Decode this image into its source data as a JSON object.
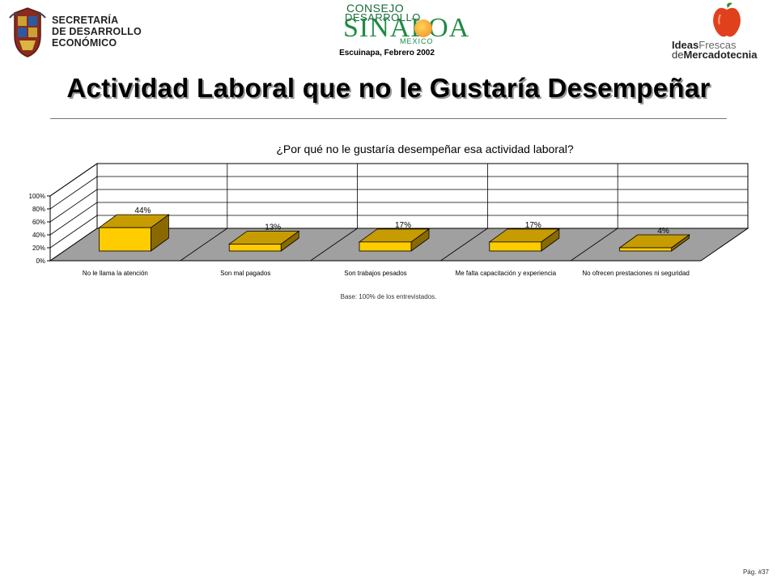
{
  "header": {
    "secretaria_lines": [
      "SECRETARÍA",
      "DE DESARROLLO",
      "ECONÓMICO"
    ],
    "consejo_logo": {
      "line1": "CONSEJO",
      "line2": "DESARROLLO",
      "line3": "SINALOA",
      "line4": "MEXICO"
    },
    "place_date": "Escuinapa, Febrero 2002",
    "ideas_logo": {
      "ideas": "Ideas",
      "frescas": "Frescas",
      "de": "de",
      "mercadotecnia": "Mercadotecnia"
    }
  },
  "page_title": "Actividad Laboral que no le Gustaría Desempeñar",
  "chart_data": {
    "type": "bar",
    "title": "¿Por qué no le gustaría desempeñar esa actividad laboral?",
    "categories": [
      "No le llama la atención",
      "Son mal pagados",
      "Son trabajos pesados",
      "Me falta capacitación y experiencia",
      "No ofrecen prestaciones ni seguridad"
    ],
    "values": [
      44,
      13,
      17,
      17,
      4
    ],
    "data_labels": [
      "44%",
      "13%",
      "17%",
      "17%",
      "4%"
    ],
    "y_ticks": [
      "0%",
      "20%",
      "40%",
      "60%",
      "80%",
      "100%"
    ],
    "ylim": [
      0,
      100
    ],
    "grid": true,
    "bar_color": "#ffcc00",
    "floor_color": "#a0a0a0"
  },
  "base_note": "Base:  100% de los entrevistados.",
  "page_number": "Pág. #37"
}
